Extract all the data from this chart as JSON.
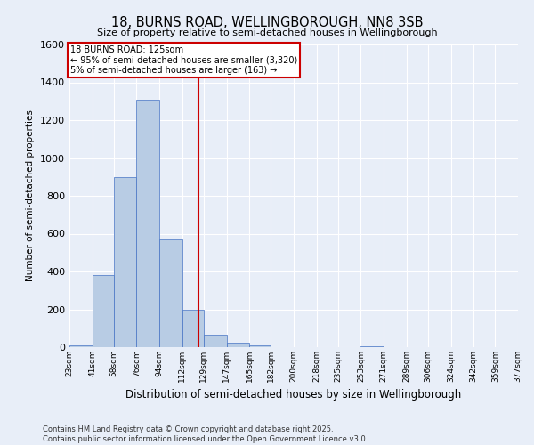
{
  "title": "18, BURNS ROAD, WELLINGBOROUGH, NN8 3SB",
  "subtitle": "Size of property relative to semi-detached houses in Wellingborough",
  "xlabel": "Distribution of semi-detached houses by size in Wellingborough",
  "ylabel": "Number of semi-detached properties",
  "property_size": 125,
  "property_label": "18 BURNS ROAD: 125sqm",
  "smaller_pct": 95,
  "smaller_count": 3320,
  "larger_pct": 5,
  "larger_count": 163,
  "bin_edges": [
    23,
    41,
    58,
    76,
    94,
    112,
    129,
    147,
    165,
    182,
    200,
    218,
    235,
    253,
    271,
    289,
    306,
    324,
    342,
    359,
    377
  ],
  "bin_labels": [
    "23sqm",
    "41sqm",
    "58sqm",
    "76sqm",
    "94sqm",
    "112sqm",
    "129sqm",
    "147sqm",
    "165sqm",
    "182sqm",
    "200sqm",
    "218sqm",
    "235sqm",
    "253sqm",
    "271sqm",
    "289sqm",
    "306sqm",
    "324sqm",
    "342sqm",
    "359sqm",
    "377sqm"
  ],
  "counts": [
    10,
    380,
    900,
    1310,
    570,
    200,
    65,
    25,
    8,
    0,
    0,
    0,
    0,
    5,
    0,
    0,
    0,
    0,
    0,
    0
  ],
  "bar_color": "#b8cce4",
  "bar_edge_color": "#4472c4",
  "vline_x": 125,
  "vline_color": "#cc0000",
  "annotation_box_color": "#cc0000",
  "background_color": "#e8eef8",
  "grid_color": "#ffffff",
  "ylim": [
    0,
    1600
  ],
  "yticks": [
    0,
    200,
    400,
    600,
    800,
    1000,
    1200,
    1400,
    1600
  ],
  "footer_line1": "Contains HM Land Registry data © Crown copyright and database right 2025.",
  "footer_line2": "Contains public sector information licensed under the Open Government Licence v3.0."
}
